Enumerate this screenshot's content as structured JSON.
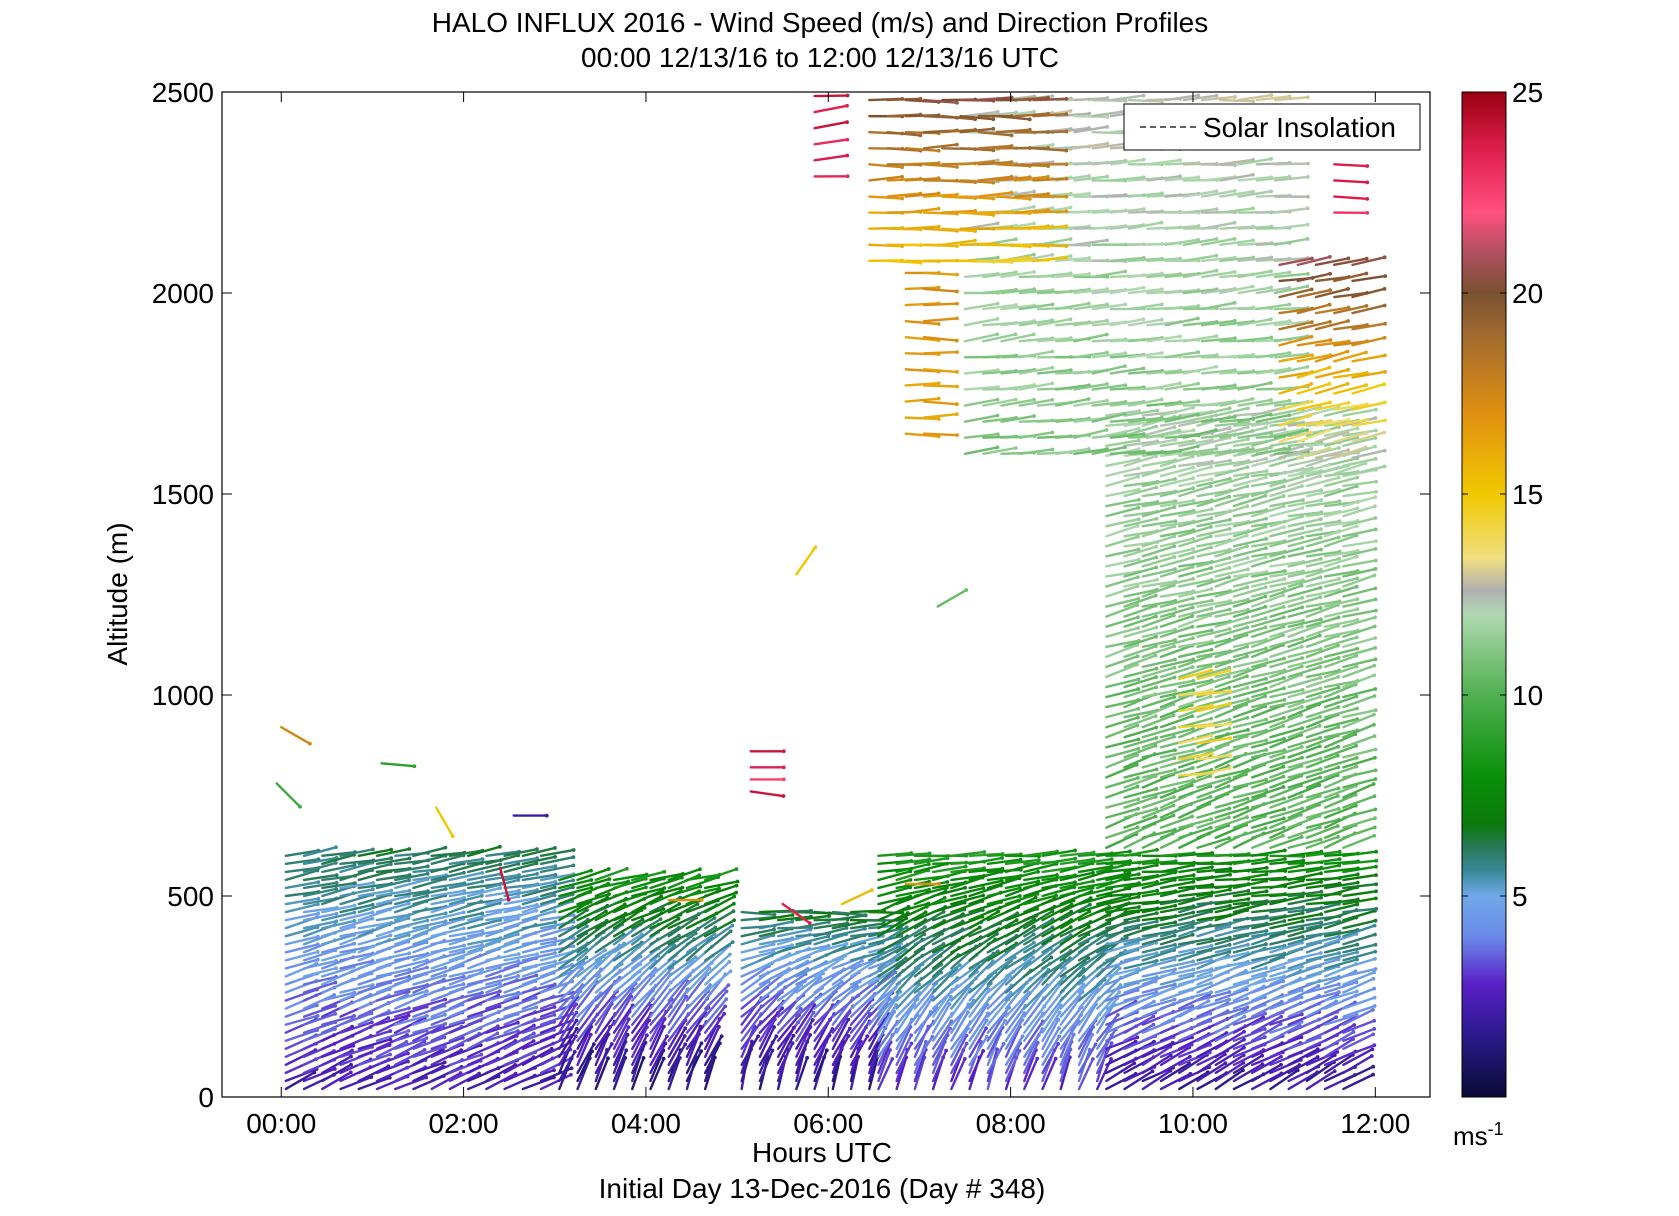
{
  "chart_data": {
    "type": "scatter",
    "title": "HALO INFLUX 2016 - Wind Speed (m/s) and Direction Profiles",
    "subtitle": "00:00 12/13/16 to 12:00 12/13/16  UTC",
    "xlabel": "Hours UTC",
    "ylabel": "Altitude (m)",
    "footer": "Initial Day 13-Dec-2016 (Day # 348)",
    "xlim": [
      -0.65,
      12.6
    ],
    "ylim": [
      0,
      2500
    ],
    "x_ticks": [
      {
        "v": 0,
        "label": "00:00"
      },
      {
        "v": 2,
        "label": "02:00"
      },
      {
        "v": 4,
        "label": "04:00"
      },
      {
        "v": 6,
        "label": "06:00"
      },
      {
        "v": 8,
        "label": "08:00"
      },
      {
        "v": 10,
        "label": "10:00"
      },
      {
        "v": 12,
        "label": "12:00"
      }
    ],
    "y_ticks": [
      {
        "v": 0,
        "label": "0"
      },
      {
        "v": 500,
        "label": "500"
      },
      {
        "v": 1000,
        "label": "1000"
      },
      {
        "v": 1500,
        "label": "1500"
      },
      {
        "v": 2000,
        "label": "2000"
      },
      {
        "v": 2500,
        "label": "2500"
      }
    ],
    "legend": {
      "position": "top-right",
      "entries": [
        {
          "name": "Solar Insolation",
          "style": "dashed",
          "color": "#000000"
        }
      ]
    },
    "colorbar": {
      "range": [
        0,
        25
      ],
      "unit_base": "ms",
      "unit_exp": "-1",
      "ticks": [
        {
          "v": 5,
          "label": "5"
        },
        {
          "v": 10,
          "label": "10"
        },
        {
          "v": 15,
          "label": "15"
        },
        {
          "v": 20,
          "label": "20"
        },
        {
          "v": 25,
          "label": "25"
        }
      ],
      "stops": [
        {
          "v": 0,
          "c": "#0a0a35"
        },
        {
          "v": 1.5,
          "c": "#2a1a8a"
        },
        {
          "v": 2.8,
          "c": "#5a20c8"
        },
        {
          "v": 4.0,
          "c": "#6a8ae8"
        },
        {
          "v": 5.0,
          "c": "#70a8e8"
        },
        {
          "v": 5.6,
          "c": "#3a8a9a"
        },
        {
          "v": 6.2,
          "c": "#2a7a5a"
        },
        {
          "v": 6.8,
          "c": "#0a7a0a"
        },
        {
          "v": 8.0,
          "c": "#0a900a"
        },
        {
          "v": 10.0,
          "c": "#50b050"
        },
        {
          "v": 12.0,
          "c": "#b0d8b0"
        },
        {
          "v": 12.6,
          "c": "#b0b0b0"
        },
        {
          "v": 13.4,
          "c": "#f0e080"
        },
        {
          "v": 15.0,
          "c": "#f0c800"
        },
        {
          "v": 17.0,
          "c": "#e09010"
        },
        {
          "v": 19.0,
          "c": "#a06a30"
        },
        {
          "v": 20.0,
          "c": "#7a5030"
        },
        {
          "v": 21.0,
          "c": "#b05060"
        },
        {
          "v": 22.0,
          "c": "#ff5080"
        },
        {
          "v": 23.5,
          "c": "#e02050"
        },
        {
          "v": 25.0,
          "c": "#9a0010"
        }
      ]
    },
    "barb_layers": [
      {
        "t0": 0.05,
        "t1": 2.9,
        "dt": 0.2,
        "a0": 20,
        "a1": 600,
        "da": 20,
        "s0": 2.4,
        "s1": 6.2,
        "dir0": 25,
        "dir1": 10
      },
      {
        "t0": 3.05,
        "t1": 4.8,
        "dt": 0.2,
        "a0": 20,
        "a1": 540,
        "da": 20,
        "s0": 1.4,
        "s1": 8.0,
        "dir0": 70,
        "dir1": 15
      },
      {
        "t0": 5.05,
        "t1": 6.45,
        "dt": 0.2,
        "a0": 20,
        "a1": 460,
        "da": 20,
        "s0": 1.6,
        "s1": 6.5,
        "dir0": 75,
        "dir1": 0
      },
      {
        "t0": 6.55,
        "t1": 8.95,
        "dt": 0.2,
        "a0": 20,
        "a1": 600,
        "da": 20,
        "s0": 3.0,
        "s1": 8.5,
        "dir0": 70,
        "dir1": 5
      },
      {
        "t0": 9.05,
        "t1": 11.8,
        "dt": 0.2,
        "a0": 20,
        "a1": 600,
        "da": 20,
        "s0": 2.0,
        "s1": 8.0,
        "dir0": 30,
        "dir1": 5
      },
      {
        "t0": 9.05,
        "t1": 11.8,
        "dt": 0.2,
        "a0": 620,
        "a1": 1700,
        "da": 25,
        "s0": 10.0,
        "s1": 12.0,
        "dir0": 20,
        "dir1": 10
      },
      {
        "t0": 7.5,
        "t1": 10.9,
        "dt": 0.2,
        "a0": 1600,
        "a1": 2480,
        "da": 40,
        "s0": 11.0,
        "s1": 12.5,
        "dir0": 8,
        "dir1": 3
      },
      {
        "t0": 6.45,
        "t1": 8.3,
        "dt": 0.2,
        "a0": 2080,
        "a1": 2480,
        "da": 40,
        "s0": 15.0,
        "s1": 20.0,
        "dir0": 2,
        "dir1": 0
      },
      {
        "t0": 6.85,
        "t1": 7.05,
        "dt": 0.2,
        "a0": 1650,
        "a1": 2050,
        "da": 40,
        "s0": 16.5,
        "s1": 17.0,
        "dir0": 0,
        "dir1": 0
      },
      {
        "t0": 5.85,
        "t1": 5.95,
        "dt": 0.2,
        "a0": 2290,
        "a1": 2490,
        "da": 40,
        "s0": 23.5,
        "s1": 24.0,
        "dir0": 5,
        "dir1": 5
      },
      {
        "t0": 10.95,
        "t1": 11.8,
        "dt": 0.2,
        "a0": 1550,
        "a1": 2100,
        "da": 40,
        "s0": 12.0,
        "s1": 21.0,
        "dir0": 15,
        "dir1": 10
      },
      {
        "t0": 11.55,
        "t1": 11.65,
        "dt": 0.2,
        "a0": 2200,
        "a1": 2330,
        "da": 40,
        "s0": 23.0,
        "s1": 23.5,
        "dir0": 0,
        "dir1": 0
      },
      {
        "t0": 9.85,
        "t1": 10.05,
        "dt": 0.2,
        "a0": 800,
        "a1": 1050,
        "da": 40,
        "s0": 14.0,
        "s1": 14.5,
        "dir0": 10,
        "dir1": 10
      }
    ],
    "extra_barbs": [
      {
        "t": 0.0,
        "z": 920,
        "s": 17.5,
        "d": -30
      },
      {
        "t": -0.05,
        "z": 780,
        "s": 9.5,
        "d": -45
      },
      {
        "t": 1.1,
        "z": 830,
        "s": 9.0,
        "d": -5
      },
      {
        "t": 1.7,
        "z": 720,
        "s": 15.0,
        "d": -60
      },
      {
        "t": 2.55,
        "z": 700,
        "s": 2.0,
        "d": 0
      },
      {
        "t": 2.4,
        "z": 570,
        "s": 24.0,
        "d": -75
      },
      {
        "t": 4.25,
        "z": 490,
        "s": 17.0,
        "d": 0
      },
      {
        "t": 5.15,
        "z": 860,
        "s": 24.0,
        "d": 0
      },
      {
        "t": 5.15,
        "z": 820,
        "s": 23.5,
        "d": 0
      },
      {
        "t": 5.15,
        "z": 790,
        "s": 22.5,
        "d": 0
      },
      {
        "t": 5.15,
        "z": 760,
        "s": 24.0,
        "d": -8
      },
      {
        "t": 5.65,
        "z": 1300,
        "s": 15.0,
        "d": 55
      },
      {
        "t": 5.5,
        "z": 480,
        "s": 23.5,
        "d": -35
      },
      {
        "t": 6.15,
        "z": 480,
        "s": 15.5,
        "d": 25
      },
      {
        "t": 7.2,
        "z": 1220,
        "s": 10.5,
        "d": 30
      },
      {
        "t": 6.85,
        "z": 530,
        "s": 17.0,
        "d": 0
      }
    ]
  }
}
